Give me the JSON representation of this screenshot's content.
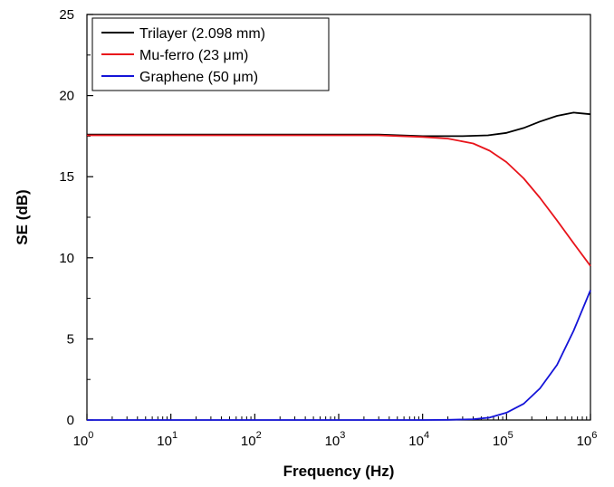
{
  "chart_data": {
    "type": "line",
    "xlabel": "Frequency (Hz)",
    "ylabel": "SE (dB)",
    "xscale": "log",
    "xlim": [
      1,
      1000000
    ],
    "ylim": [
      0,
      25
    ],
    "grid": false,
    "legend_position": "top-left",
    "x_ticks": [
      {
        "value": 1,
        "base": "10",
        "exp": "0"
      },
      {
        "value": 10,
        "base": "10",
        "exp": "1"
      },
      {
        "value": 100,
        "base": "10",
        "exp": "2"
      },
      {
        "value": 1000,
        "base": "10",
        "exp": "3"
      },
      {
        "value": 10000,
        "base": "10",
        "exp": "4"
      },
      {
        "value": 100000,
        "base": "10",
        "exp": "5"
      },
      {
        "value": 1000000,
        "base": "10",
        "exp": "6"
      }
    ],
    "y_ticks": [
      {
        "value": 0,
        "label": "0"
      },
      {
        "value": 5,
        "label": "5"
      },
      {
        "value": 10,
        "label": "10"
      },
      {
        "value": 15,
        "label": "15"
      },
      {
        "value": 20,
        "label": "20"
      },
      {
        "value": 25,
        "label": "25"
      }
    ],
    "series": [
      {
        "name": "Trilayer (2.098 mm)",
        "color": "#000000",
        "x": [
          1,
          10,
          100,
          1000,
          3000,
          10000,
          30000,
          60000,
          100000,
          160000,
          250000,
          400000,
          630000,
          1000000
        ],
        "y": [
          17.6,
          17.6,
          17.6,
          17.6,
          17.6,
          17.5,
          17.5,
          17.55,
          17.7,
          18.0,
          18.4,
          18.75,
          18.95,
          18.85
        ]
      },
      {
        "name": "Mu-ferro (23 μm)",
        "color": "#e8141b",
        "x": [
          1,
          10,
          100,
          1000,
          3000,
          10000,
          20000,
          40000,
          63000,
          100000,
          160000,
          250000,
          400000,
          630000,
          1000000
        ],
        "y": [
          17.55,
          17.55,
          17.55,
          17.55,
          17.55,
          17.45,
          17.35,
          17.05,
          16.6,
          15.9,
          14.9,
          13.7,
          12.3,
          10.9,
          9.5
        ]
      },
      {
        "name": "Graphene (50 μm)",
        "color": "#1414d8",
        "x": [
          1,
          10,
          100,
          1000,
          10000,
          20000,
          40000,
          63000,
          100000,
          160000,
          250000,
          400000,
          630000,
          1000000
        ],
        "y": [
          0,
          0,
          0,
          0,
          0,
          0.01,
          0.05,
          0.15,
          0.45,
          1.0,
          1.95,
          3.4,
          5.5,
          8.0
        ]
      }
    ]
  }
}
